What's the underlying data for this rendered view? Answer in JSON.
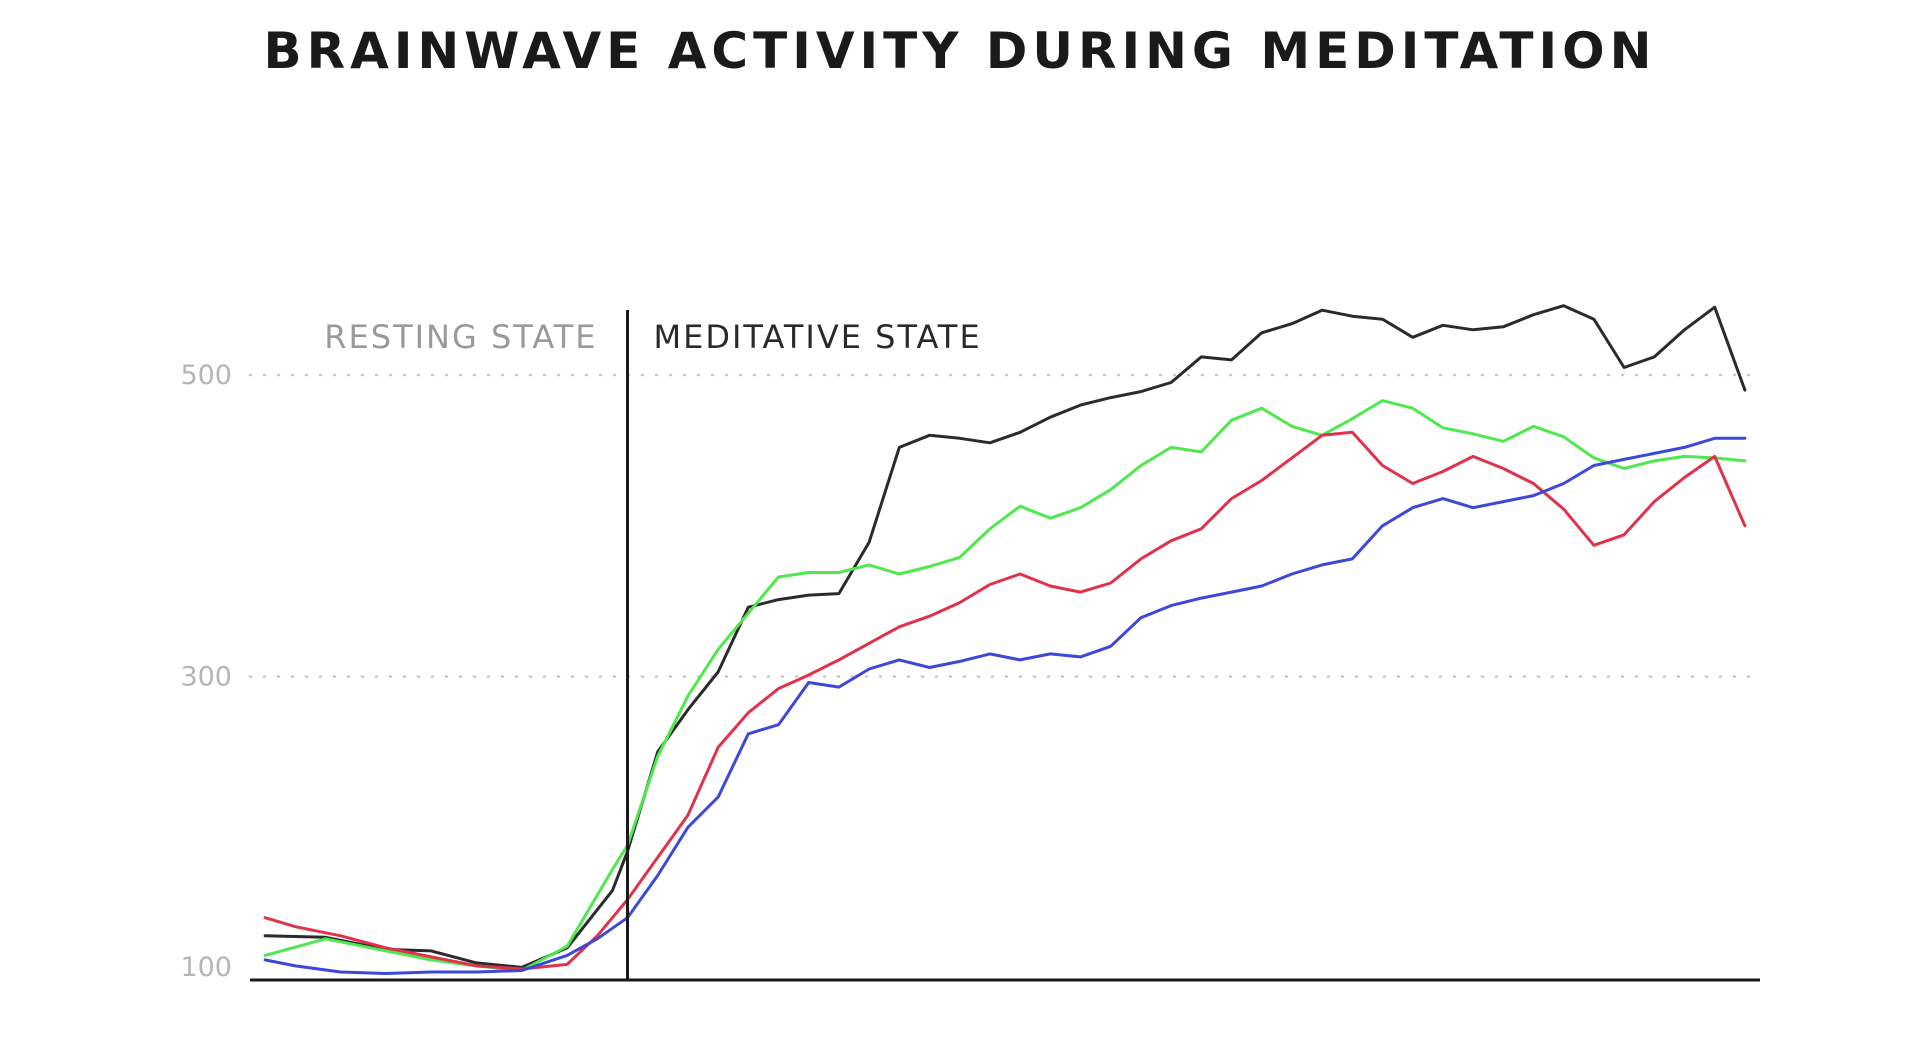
{
  "chart_data": {
    "type": "line",
    "title": "BRAINWAVE ACTIVITY DURING MEDITATION",
    "xlabel": "",
    "ylabel": "",
    "ylim": [
      100,
      500
    ],
    "xlim": [
      0,
      100
    ],
    "yticks": [
      100,
      300,
      500
    ],
    "grid": "dotted horizontal at 300 and 500",
    "phases": [
      {
        "label": "RESTING STATE",
        "x_start": 0,
        "x_end": 25
      },
      {
        "label": "MEDITATIVE STATE",
        "x_start": 25,
        "x_end": 100
      }
    ],
    "divider_x": 25,
    "series": [
      {
        "name": "black",
        "color": "#2b2b2b",
        "x": [
          1,
          5,
          9,
          12,
          15,
          18,
          21,
          24,
          25,
          27,
          29,
          31,
          33,
          35,
          37,
          39,
          41,
          43,
          45,
          47,
          49,
          51,
          53,
          55,
          57,
          59,
          61,
          63,
          65,
          67,
          69,
          71,
          73,
          75,
          77,
          79,
          81,
          83,
          85,
          87,
          89,
          91,
          93,
          95,
          97,
          99
        ],
        "y": [
          128,
          127,
          119,
          118,
          110,
          107,
          120,
          158,
          184,
          250,
          278,
          303,
          346,
          351,
          354,
          355,
          389,
          452,
          460,
          458,
          455,
          462,
          472,
          480,
          485,
          489,
          495,
          512,
          510,
          528,
          534,
          543,
          539,
          537,
          525,
          533,
          530,
          532,
          540,
          546,
          537,
          505,
          512,
          530,
          545,
          490
        ]
      },
      {
        "name": "green",
        "color": "#4fe94f",
        "x": [
          1,
          5,
          9,
          12,
          15,
          18,
          21,
          24,
          25,
          27,
          29,
          31,
          33,
          35,
          37,
          39,
          41,
          43,
          45,
          47,
          49,
          51,
          53,
          55,
          57,
          59,
          61,
          63,
          65,
          67,
          69,
          71,
          73,
          75,
          77,
          79,
          81,
          83,
          85,
          87,
          89,
          91,
          93,
          95,
          97,
          99
        ],
        "y": [
          115,
          126,
          118,
          112,
          108,
          105,
          121,
          172,
          188,
          247,
          287,
          318,
          342,
          366,
          369,
          369,
          374,
          368,
          373,
          379,
          398,
          413,
          405,
          412,
          424,
          440,
          452,
          449,
          470,
          478,
          466,
          460,
          471,
          483,
          478,
          465,
          461,
          456,
          466,
          459,
          445,
          438,
          443,
          446,
          445,
          443
        ]
      },
      {
        "name": "red",
        "color": "#e0324a",
        "x": [
          1,
          3,
          6,
          9,
          12,
          15,
          18,
          21,
          23,
          25,
          27,
          29,
          31,
          33,
          35,
          37,
          39,
          41,
          43,
          45,
          47,
          49,
          51,
          53,
          55,
          57,
          59,
          61,
          63,
          65,
          67,
          69,
          71,
          73,
          75,
          77,
          79,
          81,
          83,
          85,
          87,
          89,
          91,
          93,
          95,
          97,
          99
        ],
        "y": [
          140,
          134,
          128,
          120,
          114,
          108,
          106,
          109,
          128,
          152,
          180,
          208,
          253,
          276,
          292,
          301,
          311,
          322,
          333,
          340,
          349,
          361,
          368,
          360,
          356,
          362,
          378,
          390,
          398,
          418,
          430,
          445,
          460,
          462,
          440,
          428,
          436,
          446,
          438,
          428,
          411,
          387,
          394,
          416,
          432,
          446,
          400
        ]
      },
      {
        "name": "blue",
        "color": "#3c49d8",
        "x": [
          1,
          3,
          6,
          9,
          12,
          15,
          18,
          21,
          23,
          25,
          27,
          29,
          31,
          33,
          35,
          37,
          39,
          41,
          43,
          45,
          47,
          49,
          51,
          53,
          55,
          57,
          59,
          61,
          63,
          65,
          67,
          69,
          71,
          73,
          75,
          77,
          79,
          81,
          83,
          85,
          87,
          89,
          91,
          93,
          95,
          97,
          99
        ],
        "y": [
          112,
          108,
          104,
          103,
          104,
          104,
          105,
          115,
          126,
          140,
          168,
          200,
          220,
          262,
          268,
          296,
          293,
          305,
          311,
          306,
          310,
          315,
          311,
          315,
          313,
          320,
          339,
          347,
          352,
          356,
          360,
          368,
          374,
          378,
          400,
          412,
          418,
          412,
          416,
          420,
          428,
          440,
          444,
          448,
          452,
          458,
          458
        ]
      }
    ]
  }
}
